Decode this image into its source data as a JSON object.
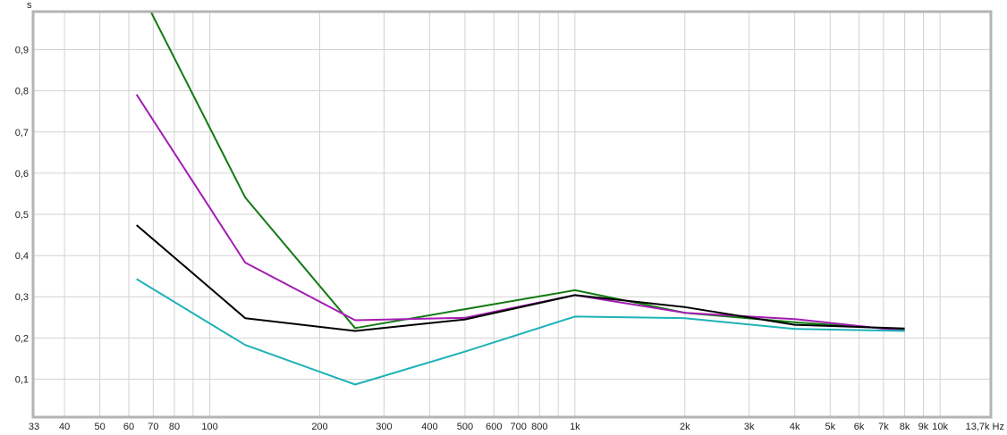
{
  "chart_data": {
    "type": "line",
    "title": "",
    "ylabel": "s",
    "xlabel": "",
    "x_scale": "log",
    "xlim": [
      33,
      13700
    ],
    "ylim": [
      0.01,
      0.99
    ],
    "grid": true,
    "y_ticks": [
      "0,1",
      "0,2",
      "0,3",
      "0,4",
      "0,5",
      "0,6",
      "0,7",
      "0,8",
      "0,9"
    ],
    "y_tick_values": [
      0.1,
      0.2,
      0.3,
      0.4,
      0.5,
      0.6,
      0.7,
      0.8,
      0.9
    ],
    "x_ticks": [
      {
        "v": 33,
        "label": "33"
      },
      {
        "v": 40,
        "label": "40"
      },
      {
        "v": 50,
        "label": "50"
      },
      {
        "v": 60,
        "label": "60"
      },
      {
        "v": 70,
        "label": "70"
      },
      {
        "v": 80,
        "label": "80"
      },
      {
        "v": 100,
        "label": "100"
      },
      {
        "v": 200,
        "label": "200"
      },
      {
        "v": 300,
        "label": "300"
      },
      {
        "v": 400,
        "label": "400"
      },
      {
        "v": 500,
        "label": "500"
      },
      {
        "v": 600,
        "label": "600"
      },
      {
        "v": 700,
        "label": "700"
      },
      {
        "v": 800,
        "label": "800"
      },
      {
        "v": 1000,
        "label": "1k"
      },
      {
        "v": 2000,
        "label": "2k"
      },
      {
        "v": 3000,
        "label": "3k"
      },
      {
        "v": 4000,
        "label": "4k"
      },
      {
        "v": 5000,
        "label": "5k"
      },
      {
        "v": 6000,
        "label": "6k"
      },
      {
        "v": 7000,
        "label": "7k"
      },
      {
        "v": 8000,
        "label": "8k"
      },
      {
        "v": 9000,
        "label": "9k"
      },
      {
        "v": 10000,
        "label": "10k"
      },
      {
        "v": 13700,
        "label": "13,7k Hz"
      }
    ],
    "x_gridlines": [
      40,
      50,
      60,
      70,
      80,
      90,
      100,
      200,
      300,
      400,
      500,
      600,
      700,
      800,
      900,
      1000,
      2000,
      3000,
      4000,
      5000,
      6000,
      7000,
      8000,
      9000,
      10000
    ],
    "x": [
      63,
      125,
      250,
      500,
      1000,
      2000,
      4000,
      8000
    ],
    "series": [
      {
        "color": "#127a12",
        "values": [
          1.06,
          0.541,
          0.224,
          0.27,
          0.316,
          0.261,
          0.238,
          0.22
        ]
      },
      {
        "color": "#a41cb4",
        "values": [
          0.791,
          0.383,
          0.243,
          0.249,
          0.304,
          0.261,
          0.246,
          0.217
        ]
      },
      {
        "color": "#000000",
        "values": [
          0.474,
          0.248,
          0.217,
          0.245,
          0.304,
          0.275,
          0.232,
          0.223
        ]
      },
      {
        "color": "#1fb2b8",
        "values": [
          0.343,
          0.183,
          0.087,
          0.167,
          0.252,
          0.248,
          0.222,
          0.217
        ]
      }
    ]
  }
}
